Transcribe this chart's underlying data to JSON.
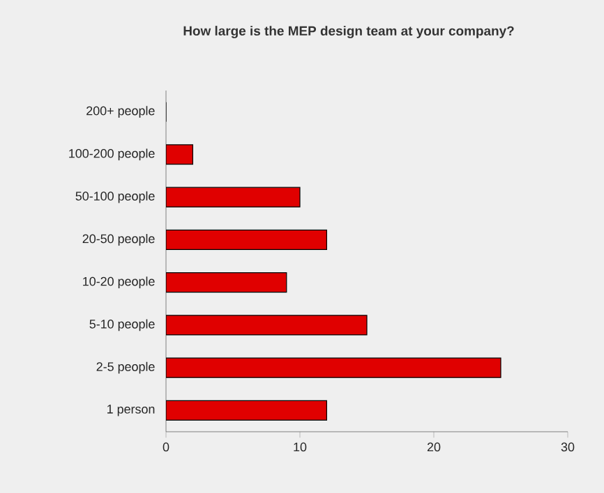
{
  "chart_data": {
    "type": "bar",
    "orientation": "horizontal",
    "title": "How large is the MEP design team at your company?",
    "categories": [
      "200+ people",
      "100-200 people",
      "50-100 people",
      "20-50 people",
      "10-20 people",
      "5-10 people",
      "2-5 people",
      "1 person"
    ],
    "values": [
      0,
      2,
      10,
      12,
      9,
      15,
      25,
      12
    ],
    "color": "#e00000",
    "xlim": [
      0,
      30
    ],
    "xticks": [
      0,
      10,
      20,
      30
    ]
  }
}
